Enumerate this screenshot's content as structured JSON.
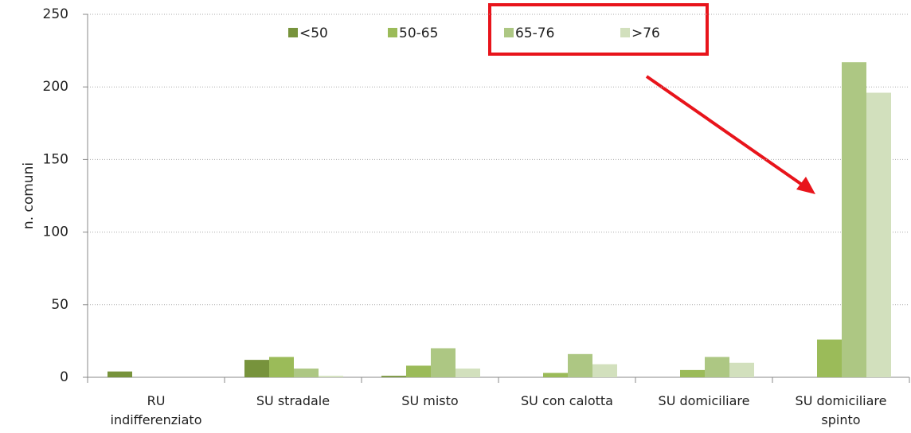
{
  "chart_data": {
    "type": "bar",
    "y_label": "n. comuni",
    "categories": [
      "RU\nindifferenziato",
      "SU stradale",
      "SU misto",
      "SU con calotta",
      "SU domiciliare",
      "SU domiciliare\nspinto"
    ],
    "series": [
      {
        "name": "<50",
        "color": "#77933c",
        "values": [
          4,
          12,
          1,
          0,
          0,
          0
        ]
      },
      {
        "name": "50-65",
        "color": "#9bbb59",
        "values": [
          0,
          14,
          8,
          3,
          5,
          26
        ]
      },
      {
        "name": "65-76",
        "color": "#adc783",
        "values": [
          0,
          6,
          20,
          16,
          14,
          217
        ]
      },
      {
        "name": ">76",
        "color": "#d2e0bd",
        "values": [
          0,
          1,
          6,
          9,
          10,
          196
        ]
      }
    ],
    "ylim": [
      0,
      250
    ],
    "yticks": [
      0,
      50,
      100,
      150,
      200,
      250
    ],
    "grid": true,
    "legend": "top"
  }
}
